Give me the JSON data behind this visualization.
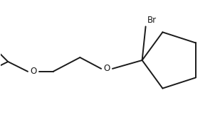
{
  "background_color": "#ffffff",
  "line_color": "#1a1a1a",
  "line_width": 1.4,
  "font_size": 8.5,
  "label_color": "#1a1a1a",
  "figsize": [
    3.09,
    1.65
  ],
  "dpi": 100,
  "br_label": "Br",
  "o_label1": "O",
  "o_label2": "O"
}
